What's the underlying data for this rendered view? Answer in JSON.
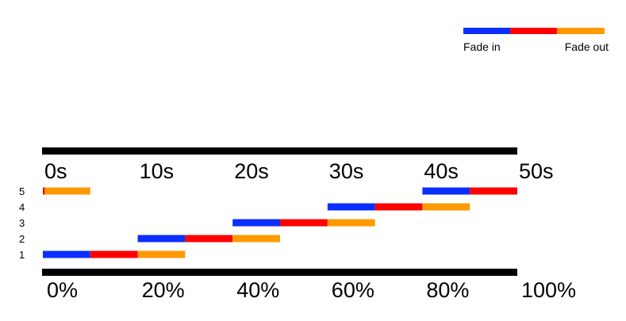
{
  "legend": {
    "fade_in_label": "Fade in",
    "fade_out_label": "Fade out"
  },
  "colors": {
    "fade_in": "#0a2eff",
    "hold": "#ff0000",
    "fade_out": "#ff9900",
    "axis": "#000000",
    "text": "#000000"
  },
  "time_axis": {
    "ticks": [
      "0s",
      "10s",
      "20s",
      "30s",
      "40s",
      "50s"
    ]
  },
  "percent_axis": {
    "ticks": [
      "0%",
      "20%",
      "40%",
      "60%",
      "80%",
      "100%"
    ]
  },
  "chart_data": {
    "type": "bar",
    "x_unit": "s",
    "xlim": [
      0,
      50
    ],
    "rows": [
      {
        "label": "1",
        "segments": [
          {
            "phase": "fade_in",
            "start": 0,
            "end": 5
          },
          {
            "phase": "hold",
            "start": 5,
            "end": 10
          },
          {
            "phase": "fade_out",
            "start": 10,
            "end": 15
          }
        ]
      },
      {
        "label": "2",
        "segments": [
          {
            "phase": "fade_in",
            "start": 10,
            "end": 15
          },
          {
            "phase": "hold",
            "start": 15,
            "end": 20
          },
          {
            "phase": "fade_out",
            "start": 20,
            "end": 25
          }
        ]
      },
      {
        "label": "3",
        "segments": [
          {
            "phase": "fade_in",
            "start": 20,
            "end": 25
          },
          {
            "phase": "hold",
            "start": 25,
            "end": 30
          },
          {
            "phase": "fade_out",
            "start": 30,
            "end": 35
          }
        ]
      },
      {
        "label": "4",
        "segments": [
          {
            "phase": "fade_in",
            "start": 30,
            "end": 35
          },
          {
            "phase": "hold",
            "start": 35,
            "end": 40
          },
          {
            "phase": "fade_out",
            "start": 40,
            "end": 45
          }
        ]
      },
      {
        "label": "5",
        "segments": [
          {
            "phase": "fade_in",
            "start": 40,
            "end": 45
          },
          {
            "phase": "hold",
            "start": 45,
            "end": 50
          },
          {
            "phase": "hold",
            "start": 0,
            "end": 0.2
          },
          {
            "phase": "fade_out",
            "start": 0.2,
            "end": 5
          }
        ]
      }
    ]
  }
}
